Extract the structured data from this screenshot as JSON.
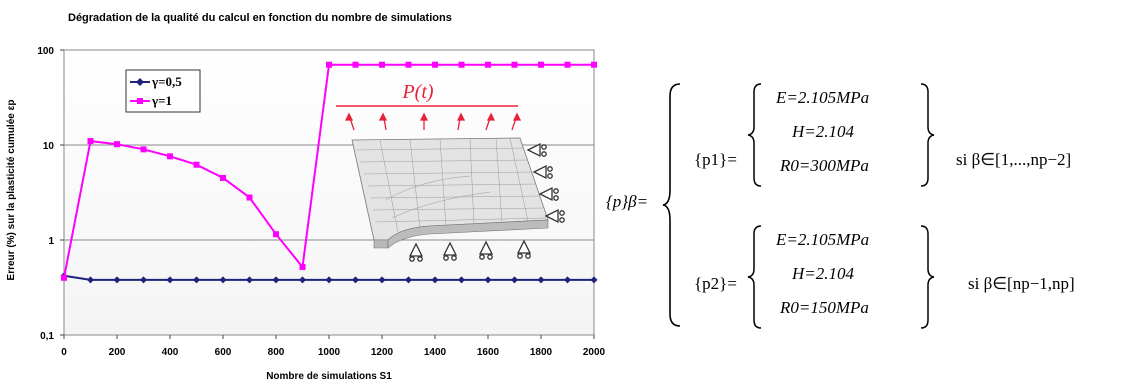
{
  "chart_data": {
    "type": "line",
    "title": "Dégradation de la qualité du calcul en fonction du nombre de simulations",
    "xlabel": "Nombre de simulations S1",
    "ylabel": "Erreur (%) sur la plasticité cumulée εp",
    "xlim": [
      0,
      2000
    ],
    "ylim": [
      0.1,
      100
    ],
    "yscale": "log",
    "x_ticks": [
      "0",
      "200",
      "400",
      "600",
      "800",
      "1000",
      "1200",
      "1400",
      "1600",
      "1800",
      "2000"
    ],
    "y_ticks": [
      "0,1",
      "1",
      "10",
      "100"
    ],
    "grid": "horizontal",
    "legend": "top-left",
    "series": [
      {
        "name": "γ=0,5",
        "color": "#1f237a",
        "marker": "diamond",
        "x": [
          0,
          100,
          200,
          300,
          400,
          500,
          600,
          700,
          800,
          900,
          1000,
          1100,
          1200,
          1300,
          1400,
          1500,
          1600,
          1700,
          1800,
          1900,
          2000
        ],
        "y": [
          0.42,
          0.38,
          0.38,
          0.38,
          0.38,
          0.38,
          0.38,
          0.38,
          0.38,
          0.38,
          0.38,
          0.38,
          0.38,
          0.38,
          0.38,
          0.38,
          0.38,
          0.38,
          0.38,
          0.38,
          0.38
        ]
      },
      {
        "name": "γ=1",
        "color": "#ff00ff",
        "marker": "square",
        "x": [
          0,
          100,
          200,
          300,
          400,
          500,
          600,
          700,
          800,
          900,
          1000,
          1100,
          1200,
          1300,
          1400,
          1500,
          1600,
          1700,
          1800,
          1900,
          2000
        ],
        "y": [
          0.4,
          11,
          10.2,
          9,
          7.6,
          6.2,
          4.5,
          2.8,
          1.15,
          0.52,
          70,
          70,
          70,
          70,
          70,
          70,
          70,
          70,
          70,
          70,
          70
        ]
      }
    ],
    "annotation": "P(t)"
  },
  "formula": {
    "lhs": "{p}β=",
    "sets": [
      {
        "name": "{p1}=",
        "lines": [
          "E=2.105MPa",
          "H=2.104",
          "R0=300MPa"
        ],
        "condition": "si β∈[1,...,np−2]"
      },
      {
        "name": "{p2}=",
        "lines": [
          "E=2.105MPa",
          "H=2.104",
          "R0=150MPa"
        ],
        "condition": "si β∈[np−1,np]"
      }
    ]
  }
}
